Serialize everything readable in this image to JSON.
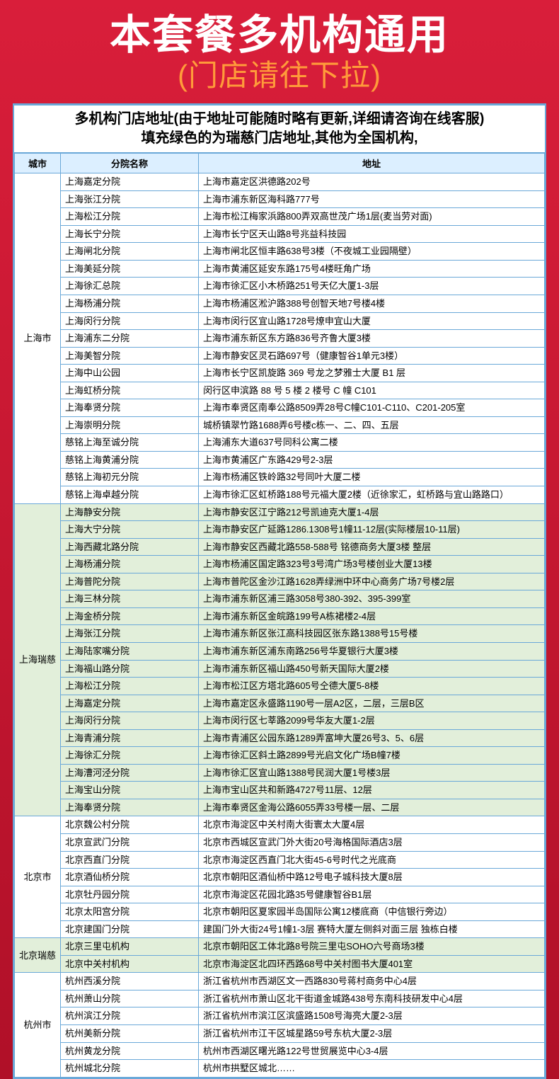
{
  "header": {
    "title": "本套餐多机构通用",
    "subtitle": "(门店请往下拉)"
  },
  "notice_line1": "多机构门店地址(由于地址可能随时略有更新,详细请咨询在线客服)",
  "notice_line2": "填充绿色的为瑞慈门店地址,其他为全国机构,",
  "columns": {
    "city": "城市",
    "branch": "分院名称",
    "address": "地址"
  },
  "colors": {
    "page_bg": "#c41230",
    "header_title": "#ffffff",
    "header_sub": "#ff9b3a",
    "table_border": "#6aa8d8",
    "th_bg": "#dcefff",
    "row_white": "#ffffff",
    "row_green": "#e2efda"
  },
  "groups": [
    {
      "city": "上海市",
      "green": false,
      "rows": [
        {
          "branch": "上海嘉定分院",
          "addr": "上海市嘉定区洪德路202号"
        },
        {
          "branch": "上海张江分院",
          "addr": "上海市浦东新区海科路777号"
        },
        {
          "branch": "上海松江分院",
          "addr": "上海市松江梅家浜路800弄双高世茂广场1层(麦当劳对面)"
        },
        {
          "branch": "上海长宁分院",
          "addr": "上海市长宁区天山路8号兆益科技园"
        },
        {
          "branch": "上海闸北分院",
          "addr": "上海市闸北区恒丰路638号3楼（不夜城工业园隔壁）"
        },
        {
          "branch": "上海美延分院",
          "addr": "上海市黄浦区延安东路175号4楼旺角广场"
        },
        {
          "branch": "上海徐汇总院",
          "addr": "上海市徐汇区小木桥路251号天亿大厦1-3层"
        },
        {
          "branch": "上海杨浦分院",
          "addr": "上海市杨浦区淞沪路388号创智天地7号楼4楼"
        },
        {
          "branch": "上海闵行分院",
          "addr": "上海市闵行区宜山路1728号燎申宜山大厦"
        },
        {
          "branch": "上海浦东二分院",
          "addr": "上海市浦东新区东方路836号齐鲁大厦3楼"
        },
        {
          "branch": "上海美智分院",
          "addr": "上海市静安区灵石路697号（健康智谷1单元3楼）"
        },
        {
          "branch": "上海中山公园",
          "addr": "上海市长宁区凯旋路 369 号龙之梦雅士大厦 B1 层"
        },
        {
          "branch": "上海虹桥分院",
          "addr": "闵行区申滨路 88 号 5 楼 2 楼号 C 幢 C101"
        },
        {
          "branch": "上海奉贤分院",
          "addr": "上海市奉贤区南奉公路8509弄28号C幢C101-C110、C201-205室"
        },
        {
          "branch": "上海崇明分院",
          "addr": "城桥镇翠竹路1688弄6号楼c栋一、二、四、五层"
        },
        {
          "branch": "慈铭上海至诚分院",
          "addr": "上海浦东大道637号同科公寓二楼"
        },
        {
          "branch": "慈铭上海黄浦分院",
          "addr": "上海市黄浦区广东路429号2-3层"
        },
        {
          "branch": "慈铭上海初元分院",
          "addr": "上海市杨浦区铁岭路32号同叶大厦二楼"
        },
        {
          "branch": "慈铭上海卓越分院",
          "addr": "上海市徐汇区虹桥路188号元福大厦2楼（近徐家汇，虹桥路与宜山路路口）"
        }
      ]
    },
    {
      "city": "上海瑞慈",
      "green": true,
      "rows": [
        {
          "branch": "上海静安分院",
          "addr": "上海市静安区江宁路212号凯迪克大厦1-4层"
        },
        {
          "branch": "上海大宁分院",
          "addr": "上海市静安区广延路1286.1308号1幢11-12层(实际楼层10-11层)"
        },
        {
          "branch": "上海西藏北路分院",
          "addr": "上海市静安区西藏北路558-588号 铭德商务大厦3楼 整层"
        },
        {
          "branch": "上海杨浦分院",
          "addr": "上海市杨浦区国定路323号3号湾广场3号楼创业大厦13楼"
        },
        {
          "branch": "上海普陀分院",
          "addr": "上海市普陀区金沙江路1628弄绿洲中环中心商务广场7号楼2层"
        },
        {
          "branch": "上海三林分院",
          "addr": "上海市浦东新区浦三路3058号380-392、395-399室"
        },
        {
          "branch": "上海金桥分院",
          "addr": "上海市浦东新区金皖路199号A栋裙楼2-4层"
        },
        {
          "branch": "上海张江分院",
          "addr": "上海市浦东新区张江高科技园区张东路1388号15号楼"
        },
        {
          "branch": "上海陆家嘴分院",
          "addr": "上海市浦东新区浦东南路256号华夏银行大厦3楼"
        },
        {
          "branch": "上海福山路分院",
          "addr": "上海市浦东新区福山路450号新天国际大厦2楼"
        },
        {
          "branch": "上海松江分院",
          "addr": "上海市松江区方塔北路605号仝德大厦5-8楼"
        },
        {
          "branch": "上海嘉定分院",
          "addr": "上海市嘉定区永盛路1190号一层A2区，二层，三层B区"
        },
        {
          "branch": "上海闵行分院",
          "addr": "上海市闵行区七莘路2099号华友大厦1-2层"
        },
        {
          "branch": "上海青浦分院",
          "addr": "上海市青浦区公园东路1289弄富坤大厦26号3、5、6层"
        },
        {
          "branch": "上海徐汇分院",
          "addr": "上海市徐汇区斜土路2899号光启文化广场B幢7楼"
        },
        {
          "branch": "上海漕河泾分院",
          "addr": "上海市徐汇区宜山路1388号民润大厦1号楼3层"
        },
        {
          "branch": "上海宝山分院",
          "addr": "上海市宝山区共和新路4727号11层、12层"
        },
        {
          "branch": "上海奉贤分院",
          "addr": "上海市奉贤区金海公路6055弄33号楼一层、二层"
        }
      ]
    },
    {
      "city": "北京市",
      "green": false,
      "rows": [
        {
          "branch": "北京魏公村分院",
          "addr": "北京市海淀区中关村南大街寰太大厦4层"
        },
        {
          "branch": "北京宣武门分院",
          "addr": "北京市西城区宣武门外大街20号海格国际酒店3层"
        },
        {
          "branch": "北京西直门分院",
          "addr": "北京市海淀区西直门北大街45-6号时代之光底商"
        },
        {
          "branch": "北京酒仙桥分院",
          "addr": "北京市朝阳区酒仙桥中路12号电子城科技大厦8层"
        },
        {
          "branch": "北京牡丹园分院",
          "addr": "北京市海淀区花园北路35号健康智谷B1层"
        },
        {
          "branch": "北京太阳宫分院",
          "addr": "北京市朝阳区夏家园半岛国际公寓12楼底商（中信银行旁边）"
        },
        {
          "branch": "北京建国门分院",
          "addr": "建国门外大街24号1幢1-3层 赛特大厦左侧斜对面三层 独栋白楼"
        }
      ]
    },
    {
      "city": "北京瑞慈",
      "green": true,
      "rows": [
        {
          "branch": "北京三里屯机构",
          "addr": "北京市朝阳区工体北路8号院三里屯SOHO六号商场3楼"
        },
        {
          "branch": "北京中关村机构",
          "addr": "北京市海淀区北四环西路68号中关村图书大厦401室"
        }
      ]
    },
    {
      "city": "杭州市",
      "green": false,
      "rows": [
        {
          "branch": "杭州西溪分院",
          "addr": "浙江省杭州市西湖区文一西路830号蒋村商务中心4层"
        },
        {
          "branch": "杭州萧山分院",
          "addr": "浙江省杭州市萧山区北干街道金城路438号东南科技研发中心4层"
        },
        {
          "branch": "杭州滨江分院",
          "addr": "浙江省杭州市滨江区滨盛路1508号海亮大厦2-3层"
        },
        {
          "branch": "杭州美新分院",
          "addr": "浙江省杭州市江干区城星路59号东杭大厦2-3层"
        },
        {
          "branch": "杭州黄龙分院",
          "addr": "杭州市西湖区曙光路122号世贸展览中心3-4层"
        },
        {
          "branch": "杭州城北分院",
          "addr": "杭州市拱墅区城北……"
        }
      ]
    }
  ]
}
